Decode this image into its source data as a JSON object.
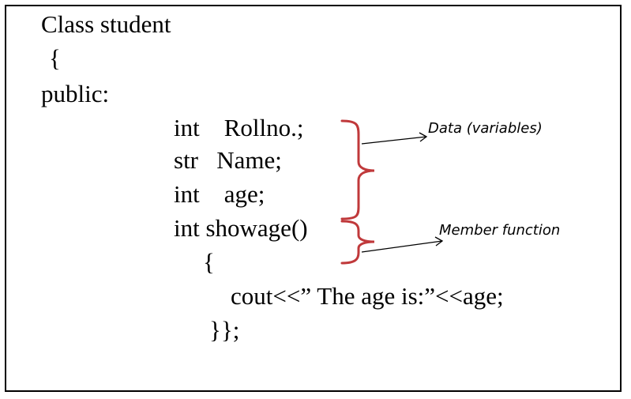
{
  "code": {
    "lines": [
      "Class student",
      "{",
      "public:",
      "int    Rollno.;",
      "str   Name;",
      "int    age;",
      "int showage()",
      "{",
      "cout<<” The age is:”<<age;",
      "}};"
    ]
  },
  "annotations": {
    "data_label": "Data (variables)",
    "member_label": "Member function"
  },
  "colors": {
    "brace": "#c0393b",
    "text": "#000000",
    "border": "#000000"
  }
}
